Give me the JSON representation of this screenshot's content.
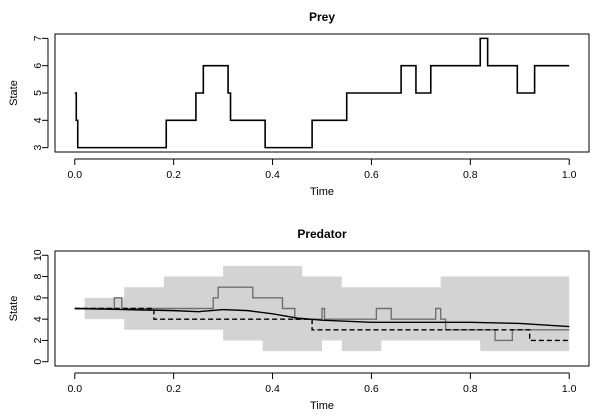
{
  "chart_data": [
    {
      "type": "line",
      "title": "Prey",
      "xlabel": "Time",
      "ylabel": "State",
      "xlim": [
        0,
        1
      ],
      "ylim": [
        3,
        7
      ],
      "xticks": [
        0.0,
        0.2,
        0.4,
        0.6,
        0.8,
        1.0
      ],
      "xtick_labels": [
        "0.0",
        "0.2",
        "0.4",
        "0.6",
        "0.8",
        "1.0"
      ],
      "yticks": [
        3,
        4,
        5,
        6,
        7
      ],
      "ytick_labels": [
        "3",
        "4",
        "5",
        "6",
        "7"
      ],
      "grid": false,
      "series": [
        {
          "style": "step",
          "color": "#000000",
          "dash": "solid",
          "x": [
            0.0,
            0.003,
            0.006,
            0.185,
            0.245,
            0.26,
            0.31,
            0.315,
            0.385,
            0.48,
            0.55,
            0.66,
            0.69,
            0.72,
            0.82,
            0.835,
            0.895,
            0.93,
            1.0
          ],
          "y": [
            5,
            4,
            3,
            4,
            5,
            6,
            5,
            4,
            3,
            4,
            5,
            6,
            5,
            6,
            7,
            6,
            5,
            6,
            6
          ]
        }
      ]
    },
    {
      "type": "line",
      "title": "Predator",
      "xlabel": "Time",
      "ylabel": "State",
      "xlim": [
        0,
        1
      ],
      "ylim": [
        0,
        10
      ],
      "xticks": [
        0.0,
        0.2,
        0.4,
        0.6,
        0.8,
        1.0
      ],
      "xtick_labels": [
        "0.0",
        "0.2",
        "0.4",
        "0.6",
        "0.8",
        "1.0"
      ],
      "yticks": [
        0,
        2,
        4,
        6,
        8,
        10
      ],
      "ytick_labels": [
        "0",
        "2",
        "4",
        "6",
        "8",
        "10"
      ],
      "grid": false,
      "band": {
        "color": "#d3d3d3",
        "x": [
          0.0,
          0.02,
          0.06,
          0.1,
          0.14,
          0.18,
          0.22,
          0.26,
          0.3,
          0.34,
          0.38,
          0.42,
          0.46,
          0.5,
          0.54,
          0.58,
          0.62,
          0.66,
          0.7,
          0.74,
          0.78,
          0.82,
          0.86,
          0.9,
          0.94,
          0.98,
          1.0
        ],
        "upper": [
          5,
          6,
          6,
          7,
          7,
          8,
          8,
          8,
          9,
          9,
          9,
          9,
          8,
          8,
          7,
          7,
          7,
          7,
          7,
          8,
          8,
          8,
          8,
          8,
          8,
          8,
          8
        ],
        "lower": [
          5,
          4,
          4,
          3,
          3,
          3,
          3,
          3,
          2,
          2,
          1,
          1,
          1,
          2,
          1,
          1,
          2,
          2,
          2,
          2,
          2,
          1,
          1,
          1,
          1,
          1,
          1
        ]
      },
      "series": [
        {
          "style": "step",
          "color": "#707070",
          "dash": "solid",
          "x": [
            0.0,
            0.08,
            0.095,
            0.28,
            0.29,
            0.36,
            0.42,
            0.445,
            0.5,
            0.505,
            0.51,
            0.61,
            0.64,
            0.73,
            0.74,
            0.75,
            0.85,
            0.885,
            1.0
          ],
          "y": [
            5,
            6,
            5,
            6,
            7,
            6,
            5,
            4,
            5,
            4,
            4,
            5,
            4,
            5,
            4,
            3,
            2,
            3,
            3
          ]
        },
        {
          "style": "line",
          "color": "#000000",
          "dash": "solid",
          "x": [
            0.0,
            0.1,
            0.2,
            0.25,
            0.3,
            0.35,
            0.4,
            0.45,
            0.5,
            0.6,
            0.7,
            0.8,
            0.9,
            1.0
          ],
          "y": [
            5.0,
            4.9,
            4.8,
            4.7,
            4.9,
            4.8,
            4.5,
            4.1,
            3.9,
            3.7,
            3.7,
            3.7,
            3.6,
            3.3
          ]
        },
        {
          "style": "step",
          "color": "#000000",
          "dash": "dashed",
          "x": [
            0.0,
            0.15,
            0.16,
            0.47,
            0.48,
            0.58,
            0.73,
            0.89,
            0.92,
            1.0
          ],
          "y": [
            5,
            5,
            4,
            4,
            3,
            3,
            3,
            3,
            2,
            2
          ]
        }
      ]
    }
  ]
}
